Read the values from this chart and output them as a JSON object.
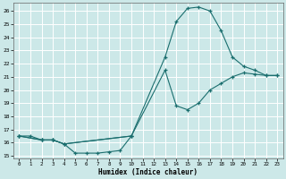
{
  "xlabel": "Humidex (Indice chaleur)",
  "xlim": [
    -0.5,
    23.5
  ],
  "ylim": [
    14.8,
    26.6
  ],
  "yticks": [
    15,
    16,
    17,
    18,
    19,
    20,
    21,
    22,
    23,
    24,
    25,
    26
  ],
  "xticks": [
    0,
    1,
    2,
    3,
    4,
    5,
    6,
    7,
    8,
    9,
    10,
    11,
    12,
    13,
    14,
    15,
    16,
    17,
    18,
    19,
    20,
    21,
    22,
    23
  ],
  "bg_color": "#cce8e8",
  "grid_color": "#ffffff",
  "line_color": "#1a6e6e",
  "line1_x": [
    0,
    1,
    2,
    3,
    4,
    5,
    6,
    7,
    8,
    9,
    10
  ],
  "line1_y": [
    16.5,
    16.5,
    16.2,
    16.2,
    15.9,
    15.2,
    15.2,
    15.2,
    15.3,
    15.4,
    16.5
  ],
  "line2_x": [
    0,
    2,
    3,
    4,
    10,
    13,
    14,
    15,
    16,
    17,
    18,
    19,
    20,
    21,
    22,
    23
  ],
  "line2_y": [
    16.5,
    16.2,
    16.2,
    15.9,
    16.5,
    21.5,
    18.8,
    18.5,
    19.0,
    20.0,
    20.5,
    21.0,
    21.3,
    21.2,
    21.1,
    21.1
  ],
  "line3_x": [
    0,
    2,
    3,
    4,
    10,
    13,
    14,
    15,
    16,
    17,
    18,
    19,
    20,
    21,
    22,
    23
  ],
  "line3_y": [
    16.5,
    16.2,
    16.2,
    15.9,
    16.5,
    22.5,
    25.2,
    26.2,
    26.3,
    26.0,
    24.5,
    22.5,
    21.8,
    21.5,
    21.1,
    21.1
  ]
}
